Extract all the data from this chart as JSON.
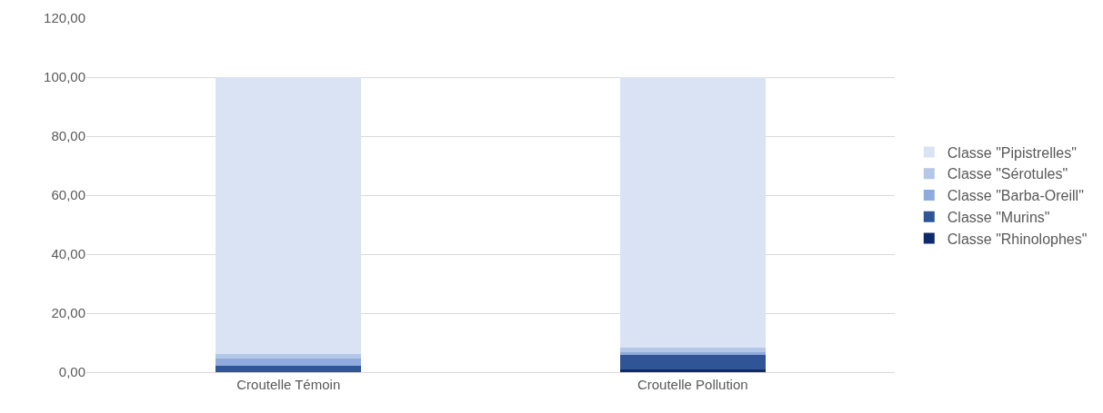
{
  "chart_data": {
    "type": "bar",
    "stacked": true,
    "categories": [
      "Croutelle Témoin",
      "Croutelle Pollution"
    ],
    "series": [
      {
        "name": "Classe \"Rhinolophes\"",
        "color": "#0f2a6b",
        "values": [
          0.1,
          1.0
        ]
      },
      {
        "name": "Classe \"Murins\"",
        "color": "#2f5597",
        "values": [
          2.2,
          4.8
        ]
      },
      {
        "name": "Classe \"Barba-Oreill\"",
        "color": "#8faadc",
        "values": [
          2.3,
          1.0
        ]
      },
      {
        "name": "Classe \"Sérotules\"",
        "color": "#b4c7e7",
        "values": [
          1.7,
          1.5
        ]
      },
      {
        "name": "Classe \"Pipistrelles\"",
        "color": "#dae3f3",
        "values": [
          93.7,
          91.7
        ]
      }
    ],
    "ylim": [
      0,
      120
    ],
    "yticks": [
      {
        "value": 0,
        "label": "0,00"
      },
      {
        "value": 20,
        "label": "20,00"
      },
      {
        "value": 40,
        "label": "40,00"
      },
      {
        "value": 60,
        "label": "60,00"
      },
      {
        "value": 80,
        "label": "80,00"
      },
      {
        "value": 100,
        "label": "100,00"
      },
      {
        "value": 120,
        "label": "120,00"
      }
    ],
    "grid": "y",
    "legend": "right"
  }
}
